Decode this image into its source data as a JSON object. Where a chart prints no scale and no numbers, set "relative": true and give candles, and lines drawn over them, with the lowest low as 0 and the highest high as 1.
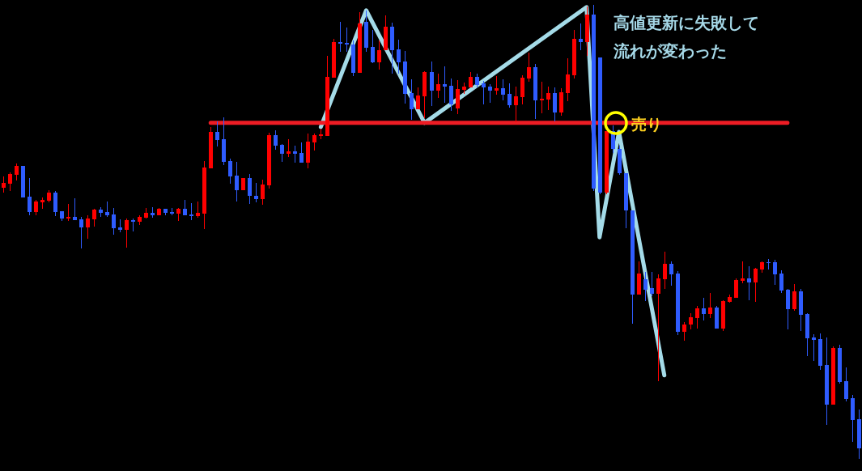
{
  "chart_data": {
    "type": "candlestick",
    "relative": true,
    "categories": [
      null,
      null,
      null,
      null,
      null,
      null,
      null,
      null,
      null,
      null,
      null,
      null,
      null,
      null,
      null,
      null,
      null,
      null,
      null,
      null,
      null,
      null,
      null,
      null,
      null,
      null,
      null,
      null,
      null,
      null,
      null,
      null,
      null,
      null,
      null,
      null,
      null,
      null,
      null,
      null,
      null,
      null,
      null,
      null,
      null,
      null,
      null,
      null,
      null,
      null,
      null,
      null,
      null,
      null,
      null,
      null,
      null,
      null,
      null,
      null,
      null,
      null,
      null,
      null,
      null,
      null,
      null,
      null,
      null,
      null,
      null,
      null,
      null,
      null,
      null,
      null,
      null,
      null,
      null,
      null,
      null,
      null,
      null,
      null,
      null,
      null,
      null,
      null,
      null,
      null,
      null,
      null,
      null,
      null,
      null,
      null,
      null,
      null,
      null,
      null,
      null,
      null,
      null,
      null,
      null,
      null,
      null,
      null,
      null,
      null,
      null,
      null,
      null,
      null,
      null,
      null,
      null,
      null,
      null,
      null,
      null,
      null,
      null,
      null,
      null,
      null,
      null,
      null,
      null,
      null,
      null,
      null,
      null
    ],
    "ohlc": [
      [
        0.597,
        0.622,
        0.586,
        0.608
      ],
      [
        0.606,
        0.631,
        0.59,
        0.627
      ],
      [
        0.626,
        0.651,
        0.613,
        0.645
      ],
      [
        0.645,
        0.645,
        0.576,
        0.576
      ],
      [
        0.578,
        0.619,
        0.537,
        0.544
      ],
      [
        0.544,
        0.57,
        0.537,
        0.567
      ],
      [
        0.565,
        0.576,
        0.551,
        0.57
      ],
      [
        0.569,
        0.592,
        0.565,
        0.586
      ],
      [
        0.586,
        0.59,
        0.535,
        0.544
      ],
      [
        0.545,
        0.545,
        0.524,
        0.529
      ],
      [
        0.529,
        0.561,
        0.524,
        0.533
      ],
      [
        0.533,
        0.574,
        0.526,
        0.526
      ],
      [
        0.528,
        0.533,
        0.463,
        0.51
      ],
      [
        0.51,
        0.537,
        0.485,
        0.529
      ],
      [
        0.528,
        0.551,
        0.512,
        0.549
      ],
      [
        0.549,
        0.554,
        0.533,
        0.542
      ],
      [
        0.544,
        0.567,
        0.533,
        0.537
      ],
      [
        0.538,
        0.553,
        0.494,
        0.508
      ],
      [
        0.51,
        0.528,
        0.499,
        0.504
      ],
      [
        0.504,
        0.529,
        0.465,
        0.526
      ],
      [
        0.526,
        0.529,
        0.501,
        0.522
      ],
      [
        0.522,
        0.537,
        0.515,
        0.533
      ],
      [
        0.531,
        0.553,
        0.529,
        0.542
      ],
      [
        0.542,
        0.554,
        0.531,
        0.537
      ],
      [
        0.537,
        0.553,
        0.537,
        0.551
      ],
      [
        0.551,
        0.551,
        0.537,
        0.542
      ],
      [
        0.544,
        0.553,
        0.537,
        0.54
      ],
      [
        0.54,
        0.553,
        0.524,
        0.551
      ],
      [
        0.551,
        0.57,
        0.537,
        0.537
      ],
      [
        0.538,
        0.563,
        0.526,
        0.535
      ],
      [
        0.535,
        0.567,
        0.531,
        0.542
      ],
      [
        0.54,
        0.656,
        0.506,
        0.642
      ],
      [
        0.64,
        0.731,
        0.64,
        0.72
      ],
      [
        0.72,
        0.743,
        0.688,
        0.702
      ],
      [
        0.704,
        0.752,
        0.647,
        0.654
      ],
      [
        0.656,
        0.661,
        0.606,
        0.622
      ],
      [
        0.624,
        0.654,
        0.567,
        0.592
      ],
      [
        0.592,
        0.619,
        0.592,
        0.619
      ],
      [
        0.619,
        0.627,
        0.561,
        0.579
      ],
      [
        0.579,
        0.608,
        0.565,
        0.572
      ],
      [
        0.572,
        0.615,
        0.56,
        0.604
      ],
      [
        0.602,
        0.718,
        0.595,
        0.713
      ],
      [
        0.713,
        0.724,
        0.681,
        0.69
      ],
      [
        0.692,
        0.693,
        0.654,
        0.672
      ],
      [
        0.672,
        0.704,
        0.665,
        0.677
      ],
      [
        0.677,
        0.69,
        0.652,
        0.672
      ],
      [
        0.674,
        0.697,
        0.652,
        0.652
      ],
      [
        0.652,
        0.717,
        0.64,
        0.699
      ],
      [
        0.697,
        0.717,
        0.679,
        0.713
      ],
      [
        0.712,
        0.727,
        0.704,
        0.714
      ],
      [
        0.711,
        0.888,
        0.711,
        0.841
      ],
      [
        0.84,
        0.925,
        0.84,
        0.918
      ],
      [
        0.918,
        0.963,
        0.897,
        0.914
      ],
      [
        0.916,
        0.95,
        0.897,
        0.913
      ],
      [
        0.913,
        0.922,
        0.843,
        0.85
      ],
      [
        0.85,
        0.984,
        0.85,
        0.959
      ],
      [
        0.963,
        0.988,
        0.897,
        0.906
      ],
      [
        0.907,
        0.945,
        0.872,
        0.873
      ],
      [
        0.873,
        0.922,
        0.857,
        0.9
      ],
      [
        0.9,
        0.977,
        0.9,
        0.952
      ],
      [
        0.952,
        0.961,
        0.848,
        0.9
      ],
      [
        0.902,
        0.923,
        0.848,
        0.873
      ],
      [
        0.875,
        0.898,
        0.783,
        0.804
      ],
      [
        0.806,
        0.836,
        0.747,
        0.77
      ],
      [
        0.77,
        0.818,
        0.77,
        0.8
      ],
      [
        0.799,
        0.854,
        0.75,
        0.852
      ],
      [
        0.852,
        0.875,
        0.777,
        0.811
      ],
      [
        0.811,
        0.848,
        0.795,
        0.825
      ],
      [
        0.825,
        0.865,
        0.784,
        0.82
      ],
      [
        0.822,
        0.838,
        0.766,
        0.781
      ],
      [
        0.772,
        0.834,
        0.759,
        0.815
      ],
      [
        0.813,
        0.829,
        0.804,
        0.82
      ],
      [
        0.818,
        0.852,
        0.818,
        0.841
      ],
      [
        0.841,
        0.848,
        0.818,
        0.824
      ],
      [
        0.827,
        0.832,
        0.781,
        0.818
      ],
      [
        0.82,
        0.825,
        0.784,
        0.811
      ],
      [
        0.811,
        0.843,
        0.802,
        0.816
      ],
      [
        0.816,
        0.836,
        0.79,
        0.802
      ],
      [
        0.804,
        0.827,
        0.774,
        0.779
      ],
      [
        0.779,
        0.82,
        0.742,
        0.799
      ],
      [
        0.797,
        0.845,
        0.781,
        0.84
      ],
      [
        0.838,
        0.895,
        0.831,
        0.863
      ],
      [
        0.863,
        0.87,
        0.749,
        0.79
      ],
      [
        0.79,
        0.831,
        0.761,
        0.793
      ],
      [
        0.791,
        0.82,
        0.768,
        0.806
      ],
      [
        0.806,
        0.818,
        0.743,
        0.763
      ],
      [
        0.763,
        0.816,
        0.756,
        0.807
      ],
      [
        0.806,
        0.882,
        0.788,
        0.847
      ],
      [
        0.845,
        0.945,
        0.838,
        0.925
      ],
      [
        0.925,
        0.959,
        0.9,
        0.918
      ],
      [
        0.918,
        0.996,
        0.888,
        0.979
      ],
      [
        0.979,
        1,
        0.59,
        0.595
      ],
      [
        0.884,
        0.884,
        0.583,
        0.586
      ],
      [
        0.586,
        0.722,
        0.583,
        0.722
      ],
      [
        0.722,
        0.734,
        0.674,
        0.683
      ],
      [
        0.683,
        0.69,
        0.626,
        0.629
      ],
      [
        0.629,
        0.629,
        0.508,
        0.547
      ],
      [
        0.547,
        0.547,
        0.298,
        0.362
      ],
      [
        0.362,
        0.435,
        0.362,
        0.408
      ],
      [
        0.396,
        0.412,
        0.348,
        0.373
      ],
      [
        0.376,
        0.412,
        0.358,
        0.364
      ],
      [
        0.364,
        0.406,
        0.171,
        0.398
      ],
      [
        0.396,
        0.456,
        0.374,
        0.43
      ],
      [
        0.43,
        0.435,
        0.381,
        0.406
      ],
      [
        0.408,
        0.414,
        0.273,
        0.28
      ],
      [
        0.28,
        0.301,
        0.26,
        0.296
      ],
      [
        0.296,
        0.321,
        0.285,
        0.312
      ],
      [
        0.31,
        0.337,
        0.287,
        0.332
      ],
      [
        0.332,
        0.355,
        0.305,
        0.319
      ],
      [
        0.319,
        0.365,
        0.31,
        0.333
      ],
      [
        0.333,
        0.337,
        0.287,
        0.287
      ],
      [
        0.287,
        0.349,
        0.282,
        0.348
      ],
      [
        0.346,
        0.362,
        0.344,
        0.357
      ],
      [
        0.355,
        0.398,
        0.355,
        0.394
      ],
      [
        0.392,
        0.435,
        0.387,
        0.398
      ],
      [
        0.398,
        0.424,
        0.349,
        0.389
      ],
      [
        0.389,
        0.421,
        0.346,
        0.419
      ],
      [
        0.417,
        0.435,
        0.41,
        0.433
      ],
      [
        0.433,
        0.44,
        0.417,
        0.431
      ],
      [
        0.433,
        0.439,
        0.383,
        0.406
      ],
      [
        0.408,
        0.415,
        0.365,
        0.371
      ],
      [
        0.373,
        0.374,
        0.285,
        0.33
      ],
      [
        0.33,
        0.385,
        0.326,
        0.369
      ],
      [
        0.369,
        0.374,
        0.282,
        0.317
      ],
      [
        0.319,
        0.321,
        0.226,
        0.266
      ],
      [
        0.267,
        0.275,
        0.216,
        0.262
      ],
      [
        0.264,
        0.276,
        0.196,
        0.205
      ],
      [
        0.207,
        0.267,
        0.075,
        0.119
      ],
      [
        0.119,
        0.248,
        0.119,
        0.244
      ],
      [
        0.244,
        0.251,
        0.166,
        0.169
      ],
      [
        0.171,
        0.201,
        0.127,
        0.132
      ],
      [
        0.134,
        0.141,
        0.037,
        0.086
      ],
      [
        0.087,
        0.109,
        0,
        0.023
      ]
    ],
    "colors": [
      "#ff0000",
      "#ff0000",
      "#ff0000",
      "#2f5cff",
      "#2f5cff",
      "#ff0000",
      "#ff0000",
      "#ff0000",
      "#2f5cff",
      "#2f5cff",
      "#ff0000",
      "#2f5cff",
      "#2f5cff",
      "#ff0000",
      "#ff0000",
      "#2f5cff",
      "#2f5cff",
      "#2f5cff",
      "#2f5cff",
      "#ff0000",
      "#2f5cff",
      "#ff0000",
      "#ff0000",
      "#2f5cff",
      "#ff0000",
      "#2f5cff",
      "#2f5cff",
      "#ff0000",
      "#2f5cff",
      "#2f5cff",
      "#ff0000",
      "#ff0000",
      "#ff0000",
      "#2f5cff",
      "#2f5cff",
      "#2f5cff",
      "#2f5cff",
      "#ff0000",
      "#2f5cff",
      "#2f5cff",
      "#ff0000",
      "#ff0000",
      "#2f5cff",
      "#2f5cff",
      "#ff0000",
      "#2f5cff",
      "#2f5cff",
      "#ff0000",
      "#ff0000",
      "#ff0000",
      "#ff0000",
      "#ff0000",
      "#2f5cff",
      "#2f5cff",
      "#2f5cff",
      "#ff0000",
      "#2f5cff",
      "#2f5cff",
      "#ff0000",
      "#ff0000",
      "#2f5cff",
      "#2f5cff",
      "#2f5cff",
      "#2f5cff",
      "#ff0000",
      "#ff0000",
      "#2f5cff",
      "#ff0000",
      "#2f5cff",
      "#2f5cff",
      "#ff0000",
      "#ff0000",
      "#ff0000",
      "#2f5cff",
      "#2f5cff",
      "#2f5cff",
      "#ff0000",
      "#2f5cff",
      "#2f5cff",
      "#ff0000",
      "#ff0000",
      "#ff0000",
      "#2f5cff",
      "#ff0000",
      "#ff0000",
      "#2f5cff",
      "#ff0000",
      "#ff0000",
      "#ff0000",
      "#2f5cff",
      "#ff0000",
      "#2f5cff",
      "#2f5cff",
      "#ff0000",
      "#2f5cff",
      "#2f5cff",
      "#2f5cff",
      "#2f5cff",
      "#ff0000",
      "#2f5cff",
      "#2f5cff",
      "#ff0000",
      "#ff0000",
      "#2f5cff",
      "#2f5cff",
      "#ff0000",
      "#ff0000",
      "#ff0000",
      "#2f5cff",
      "#ff0000",
      "#2f5cff",
      "#ff0000",
      "#ff0000",
      "#ff0000",
      "#ff0000",
      "#2f5cff",
      "#ff0000",
      "#ff0000",
      "#2f5cff",
      "#2f5cff",
      "#2f5cff",
      "#2f5cff",
      "#ff0000",
      "#2f5cff",
      "#2f5cff",
      "#2f5cff",
      "#2f5cff",
      "#2f5cff",
      "#ff0000",
      "#2f5cff",
      "#2f5cff",
      "#2f5cff",
      "#2f5cff"
    ],
    "series": [
      {
        "type": "line",
        "color": "#a4dbe8",
        "values": [
          null,
          null,
          null,
          null,
          null,
          null,
          null,
          null,
          null,
          null,
          null,
          null,
          null,
          null,
          null,
          null,
          null,
          null,
          null,
          null,
          null,
          null,
          null,
          null,
          null,
          null,
          null,
          null,
          null,
          null,
          null,
          null,
          null,
          null,
          null,
          null,
          null,
          null,
          null,
          null,
          null,
          null,
          null,
          null,
          null,
          null,
          null,
          null,
          null,
          0.731,
          null,
          null,
          null,
          null,
          null,
          null,
          0.988,
          null,
          null,
          null,
          null,
          null,
          null,
          null,
          null,
          0.74,
          null,
          null,
          null,
          null,
          null,
          null,
          null,
          null,
          null,
          null,
          null,
          null,
          null,
          null,
          null,
          null,
          null,
          null,
          null,
          null,
          null,
          null,
          null,
          null,
          0.995,
          null,
          0.488,
          null,
          null,
          0.72,
          null,
          null,
          null,
          null,
          null,
          null,
          0.184,
          null,
          null,
          null,
          null,
          null,
          null,
          null,
          null,
          null,
          null,
          null,
          null,
          null,
          null,
          null,
          null,
          null,
          null,
          null,
          null,
          null,
          null,
          null,
          null,
          null,
          null,
          null,
          null,
          null,
          null
        ]
      },
      {
        "type": "line",
        "color": "#ed1c24",
        "values": [
          null,
          null,
          null,
          null,
          null,
          null,
          null,
          null,
          null,
          null,
          null,
          null,
          null,
          null,
          null,
          null,
          null,
          null,
          null,
          null,
          null,
          null,
          null,
          null,
          null,
          null,
          null,
          null,
          null,
          null,
          null,
          null,
          0.74,
          0.74,
          0.74,
          0.74,
          0.74,
          0.74,
          0.74,
          0.74,
          0.74,
          0.74,
          0.74,
          0.74,
          0.74,
          0.74,
          0.74,
          0.74,
          0.74,
          0.74,
          0.74,
          0.74,
          0.74,
          0.74,
          0.74,
          0.74,
          0.74,
          0.74,
          0.74,
          0.74,
          0.74,
          0.74,
          0.74,
          0.74,
          0.74,
          0.74,
          0.74,
          0.74,
          0.74,
          0.74,
          0.74,
          0.74,
          0.74,
          0.74,
          0.74,
          0.74,
          0.74,
          0.74,
          0.74,
          0.74,
          0.74,
          0.74,
          0.74,
          0.74,
          0.74,
          0.74,
          0.74,
          0.74,
          0.74,
          0.74,
          0.74,
          0.74,
          0.74,
          0.74,
          0.74,
          0.74,
          0.74,
          0.74,
          0.74,
          0.74,
          0.74,
          0.74,
          0.74,
          0.74,
          0.74,
          0.74,
          0.74,
          0.74,
          0.74,
          0.74,
          0.74,
          0.74,
          0.74,
          0.74,
          0.74,
          0.74,
          0.74,
          0.74,
          0.74,
          0.74,
          0.74,
          0.74,
          null,
          null,
          null,
          null,
          null,
          null,
          null,
          null,
          null,
          null,
          null
        ]
      }
    ],
    "annotations": [
      "高値更新に失敗して流れが変わった",
      "売り"
    ]
  }
}
